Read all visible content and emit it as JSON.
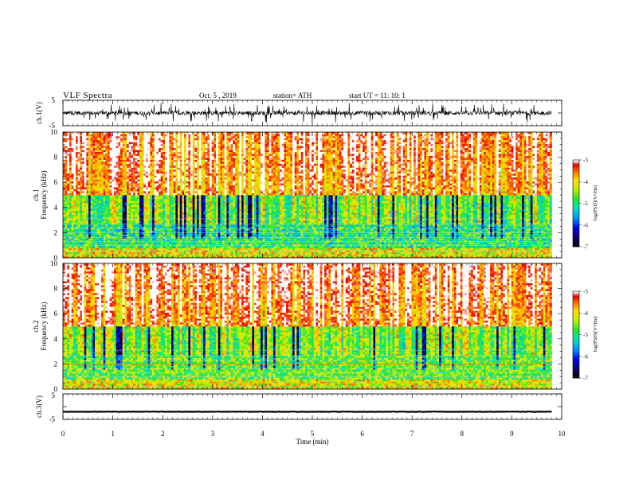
{
  "header": {
    "title": "VLF  Spectra",
    "date": "Oct. 5  , 2019",
    "station": "station= ATH",
    "start": "start  UT  =    11: 10: 1"
  },
  "chart_data": [
    {
      "type": "line",
      "panel": "ch1-waveform",
      "ylabel": "ch.1(V)",
      "yticks": [
        "5",
        "-5"
      ],
      "ylim": [
        -5,
        5
      ],
      "xlim": [
        0,
        10
      ],
      "note_series": "noisy waveform centred near 0 V with spikes reaching about ±4 V, data from 0 to ~9.8 min"
    },
    {
      "type": "heatmap",
      "panel": "ch1-spectrogram",
      "ylabel_top": "ch.1",
      "ylabel": "Frequency  (kHz)",
      "yticks": [
        "0",
        "2",
        "4",
        "6",
        "8",
        "10"
      ],
      "ylim": [
        0,
        10
      ],
      "xlim": [
        0,
        10
      ],
      "x_end": 9.8,
      "colorbar": {
        "label": "log(PSD)(V²/Hz)",
        "ticks": [
          "-3",
          "-4",
          "-5",
          "-6",
          "-7"
        ],
        "range": [
          -7,
          -3
        ]
      }
    },
    {
      "type": "heatmap",
      "panel": "ch2-spectrogram",
      "ylabel_top": "ch.2",
      "ylabel": "Frequency  (kHz)",
      "yticks": [
        "0",
        "2",
        "4",
        "6",
        "8",
        "10"
      ],
      "ylim": [
        0,
        10
      ],
      "xlim": [
        0,
        10
      ],
      "x_end": 9.8,
      "colorbar": {
        "label": "log(PSD)(V²/Hz)",
        "ticks": [
          "-3",
          "-4",
          "-5",
          "-6",
          "-7"
        ],
        "range": [
          -7,
          -3
        ]
      }
    },
    {
      "type": "line",
      "panel": "ch3-waveform",
      "ylabel": "ch.3(V)",
      "yticks": [
        "5",
        "-5"
      ],
      "ylim": [
        -5,
        5
      ],
      "xlim": [
        0,
        10
      ],
      "xlabel": "Time  (min)",
      "xticks": [
        "0",
        "1",
        "2",
        "3",
        "4",
        "5",
        "6",
        "7",
        "8",
        "9",
        "10"
      ],
      "note_series": "nearly flat trace at about -2 V"
    }
  ]
}
